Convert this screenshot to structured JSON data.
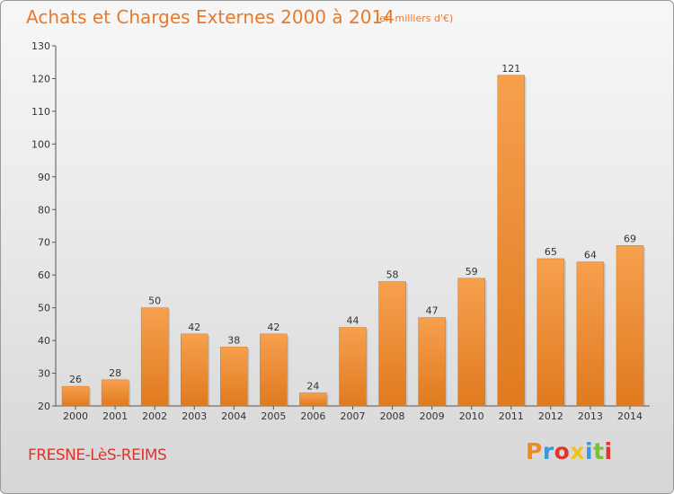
{
  "chart_data": {
    "type": "bar",
    "title": "Achats et Charges Externes 2000 à 2014",
    "subtitle": "(en milliers d'€)",
    "categories": [
      "2000",
      "2001",
      "2002",
      "2003",
      "2004",
      "2005",
      "2006",
      "2007",
      "2008",
      "2009",
      "2010",
      "2011",
      "2012",
      "2013",
      "2014"
    ],
    "values": [
      26,
      28,
      50,
      42,
      38,
      42,
      24,
      44,
      58,
      47,
      59,
      121,
      65,
      64,
      69
    ],
    "ylim": [
      20,
      130
    ],
    "yticks": [
      20,
      30,
      40,
      50,
      60,
      70,
      80,
      90,
      100,
      110,
      120,
      130
    ],
    "grid": false,
    "bar_color_light": "#f6a04e",
    "bar_color_dark": "#e07a1f"
  },
  "footer": {
    "commune": "FRESNE-LèS-REIMS",
    "logo_letters": [
      "P",
      "r",
      "o",
      "x",
      "i",
      "t",
      "i"
    ],
    "logo_colors": [
      "#f08a1c",
      "#3a9ad9",
      "#e0342c",
      "#f0c419",
      "#3a9ad9",
      "#7cbd3c",
      "#e0342c"
    ]
  },
  "colors": {
    "title": "#e8792b",
    "commune": "#e0342c"
  }
}
